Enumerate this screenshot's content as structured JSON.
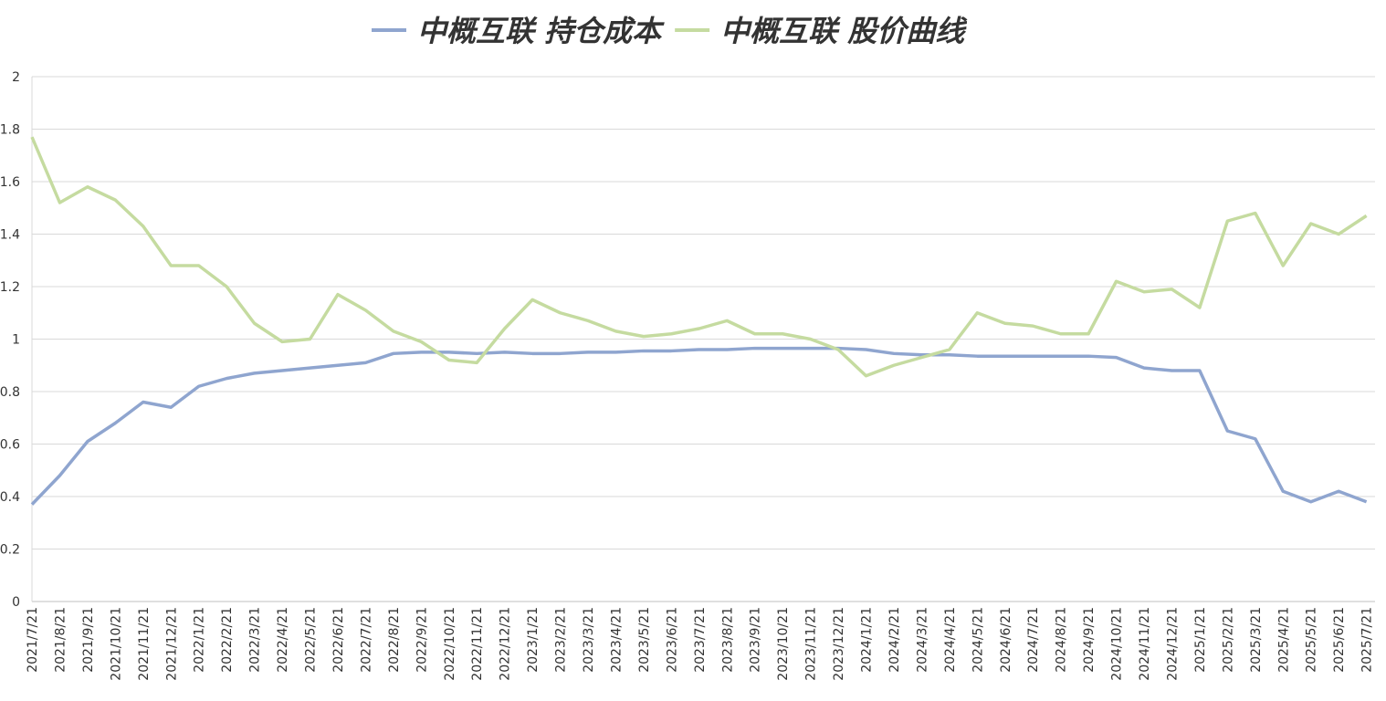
{
  "chart_data": {
    "type": "line",
    "categories": [
      "2021/7/21",
      "2021/8/21",
      "2021/9/21",
      "2021/10/21",
      "2021/11/21",
      "2021/12/21",
      "2022/1/21",
      "2022/2/21",
      "2022/3/21",
      "2022/4/21",
      "2022/5/21",
      "2022/6/21",
      "2022/7/21",
      "2022/8/21",
      "2022/9/21",
      "2022/10/21",
      "2022/11/21",
      "2022/12/21",
      "2023/1/21",
      "2023/2/21",
      "2023/3/21",
      "2023/4/21",
      "2023/5/21",
      "2023/6/21",
      "2023/7/21",
      "2023/8/21",
      "2023/9/21",
      "2023/10/21",
      "2023/11/21",
      "2023/12/21",
      "2024/1/21",
      "2024/2/21",
      "2024/3/21",
      "2024/4/21",
      "2024/5/21",
      "2024/6/21",
      "2024/7/21",
      "2024/8/21",
      "2024/9/21",
      "2024/10/21",
      "2024/11/21",
      "2024/12/21",
      "2025/1/21",
      "2025/2/21",
      "2025/3/21",
      "2025/4/21",
      "2025/5/21",
      "2025/6/21",
      "2025/7/21"
    ],
    "series": [
      {
        "name": "中概互联 持仓成本",
        "color": "#8fa5cf",
        "values": [
          0.37,
          0.48,
          0.61,
          0.68,
          0.76,
          0.74,
          0.82,
          0.85,
          0.87,
          0.88,
          0.89,
          0.9,
          0.91,
          0.945,
          0.95,
          0.95,
          0.945,
          0.95,
          0.945,
          0.945,
          0.95,
          0.95,
          0.955,
          0.955,
          0.96,
          0.96,
          0.965,
          0.965,
          0.965,
          0.965,
          0.96,
          0.945,
          0.94,
          0.94,
          0.935,
          0.935,
          0.935,
          0.935,
          0.935,
          0.93,
          0.89,
          0.88,
          0.88,
          0.65,
          0.62,
          0.42,
          0.38,
          0.42,
          0.38
        ]
      },
      {
        "name": "中概互联 股价曲线",
        "color": "#c5dba0",
        "values": [
          1.77,
          1.52,
          1.58,
          1.53,
          1.43,
          1.28,
          1.28,
          1.2,
          1.06,
          0.99,
          1.0,
          1.17,
          1.11,
          1.03,
          0.99,
          0.92,
          0.91,
          1.04,
          1.15,
          1.1,
          1.07,
          1.03,
          1.01,
          1.02,
          1.04,
          1.07,
          1.02,
          1.02,
          1.0,
          0.96,
          0.86,
          0.9,
          0.93,
          0.96,
          1.1,
          1.06,
          1.05,
          1.02,
          1.02,
          1.22,
          1.18,
          1.19,
          1.12,
          1.45,
          1.48,
          1.28,
          1.44,
          1.4,
          1.47
        ]
      }
    ],
    "ylim": [
      0,
      2
    ],
    "yticks": [
      0,
      0.2,
      0.4,
      0.6,
      0.8,
      1,
      1.2,
      1.4,
      1.6,
      1.8,
      2
    ],
    "grid": true
  }
}
